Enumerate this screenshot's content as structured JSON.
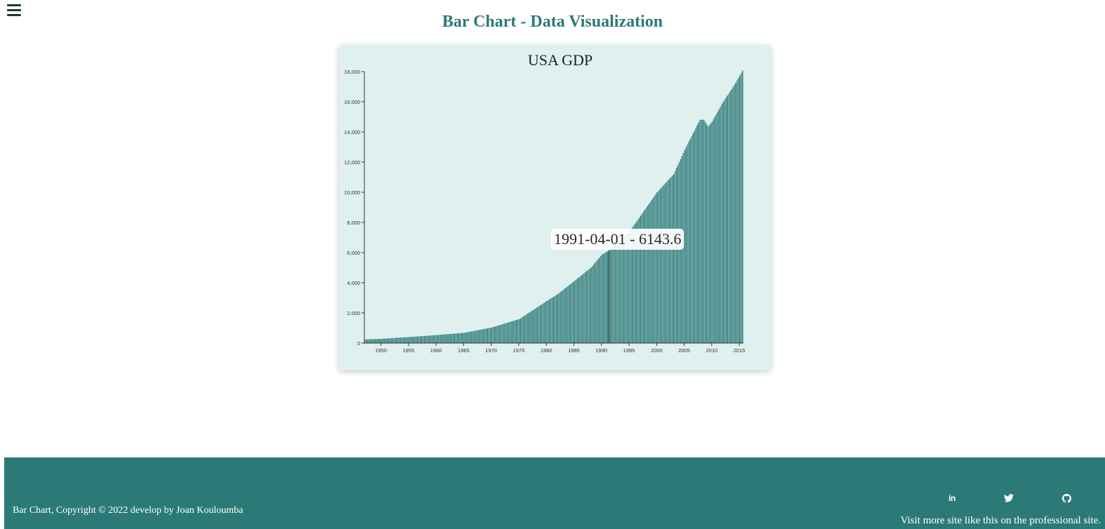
{
  "page": {
    "title": "Bar Chart - Data Visualization"
  },
  "chart": {
    "title": "USA GDP",
    "tooltip": "1991-04-01 - 6143.6",
    "bar_color": "#2c7a78",
    "highlight_color": "#1d3b39"
  },
  "chart_data": {
    "type": "bar",
    "title": "USA GDP",
    "xlabel": "",
    "ylabel": "",
    "x_range": [
      "1947-01-01",
      "2015-07-01"
    ],
    "ylim": [
      0,
      18000
    ],
    "x_ticks": [
      "1950",
      "1955",
      "1960",
      "1965",
      "1970",
      "1975",
      "1980",
      "1985",
      "1990",
      "1995",
      "2000",
      "2005",
      "2010",
      "2015"
    ],
    "y_ticks": [
      "0",
      "2,000",
      "4,000",
      "6,000",
      "8,000",
      "10,000",
      "12,000",
      "14,000",
      "16,000",
      "18,000"
    ],
    "frequency": "quarterly",
    "series": [
      {
        "anchors": [
          {
            "x": "1947-01-01",
            "y": 243
          },
          {
            "x": "1950-01-01",
            "y": 281
          },
          {
            "x": "1955-01-01",
            "y": 400
          },
          {
            "x": "1960-01-01",
            "y": 530
          },
          {
            "x": "1965-01-01",
            "y": 680
          },
          {
            "x": "1970-01-01",
            "y": 1030
          },
          {
            "x": "1975-01-01",
            "y": 1590
          },
          {
            "x": "1980-01-01",
            "y": 2790
          },
          {
            "x": "1982-01-01",
            "y": 3250
          },
          {
            "x": "1985-01-01",
            "y": 4120
          },
          {
            "x": "1988-01-01",
            "y": 5000
          },
          {
            "x": "1990-01-01",
            "y": 5870
          },
          {
            "x": "1991-04-01",
            "y": 6143.6
          },
          {
            "x": "1995-01-01",
            "y": 7400
          },
          {
            "x": "2000-01-01",
            "y": 10000
          },
          {
            "x": "2003-01-01",
            "y": 11200
          },
          {
            "x": "2005-01-01",
            "y": 12800
          },
          {
            "x": "2007-10-01",
            "y": 14800
          },
          {
            "x": "2008-07-01",
            "y": 14800
          },
          {
            "x": "2009-04-01",
            "y": 14350
          },
          {
            "x": "2010-01-01",
            "y": 14700
          },
          {
            "x": "2012-01-01",
            "y": 16000
          },
          {
            "x": "2014-01-01",
            "y": 17100
          },
          {
            "x": "2015-07-01",
            "y": 18064.7
          }
        ]
      }
    ],
    "highlight": {
      "x": "1991-04-01",
      "y": 6143.6
    }
  },
  "footer": {
    "copyright": "Bar Chart, Copyright © 2022 develop by Joan Kouloumba",
    "visit": "Visit more site like this on the professional site.",
    "social": [
      "linkedin-icon",
      "twitter-icon",
      "github-icon"
    ],
    "linkedin_label": "in"
  }
}
